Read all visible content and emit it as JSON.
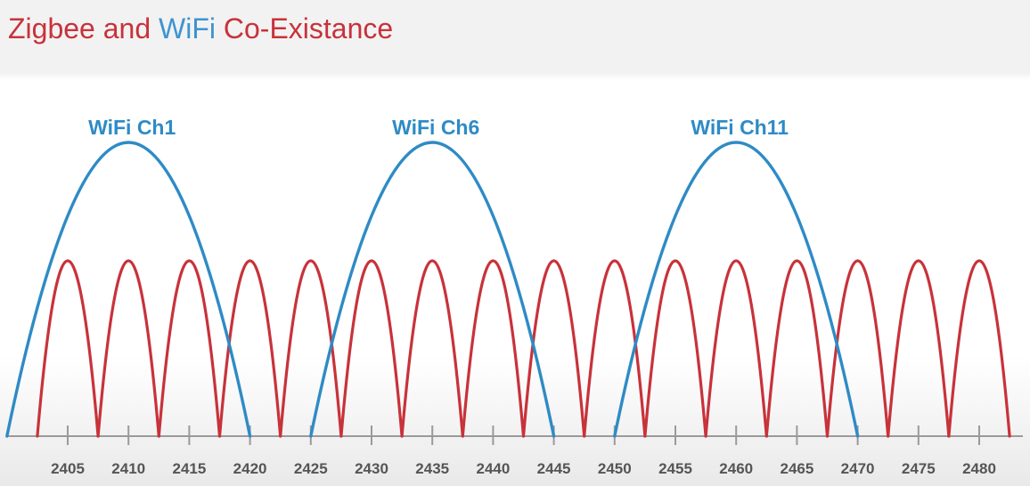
{
  "title": {
    "part1": "Zigbee and ",
    "part2": "WiFi",
    "part3": " Co-Existance"
  },
  "colors": {
    "zigbee": "#c8323a",
    "wifi": "#2e8bc5",
    "axis": "#9a9a9a",
    "tick_label": "#555555"
  },
  "diagram": {
    "axis_ticks": [
      2405,
      2410,
      2415,
      2420,
      2425,
      2430,
      2435,
      2440,
      2445,
      2450,
      2455,
      2460,
      2465,
      2470,
      2475,
      2480
    ],
    "zigbee_channels_mhz": [
      2405,
      2410,
      2415,
      2420,
      2425,
      2430,
      2435,
      2440,
      2445,
      2450,
      2455,
      2460,
      2465,
      2470,
      2475,
      2480
    ],
    "zigbee_width_mhz": 5,
    "wifi_channels": [
      {
        "label": "WiFi Ch1",
        "center_mhz": 2410,
        "width_mhz": 20
      },
      {
        "label": "WiFi Ch6",
        "center_mhz": 2435,
        "width_mhz": 20
      },
      {
        "label": "WiFi Ch11",
        "center_mhz": 2460,
        "width_mhz": 20
      }
    ]
  }
}
